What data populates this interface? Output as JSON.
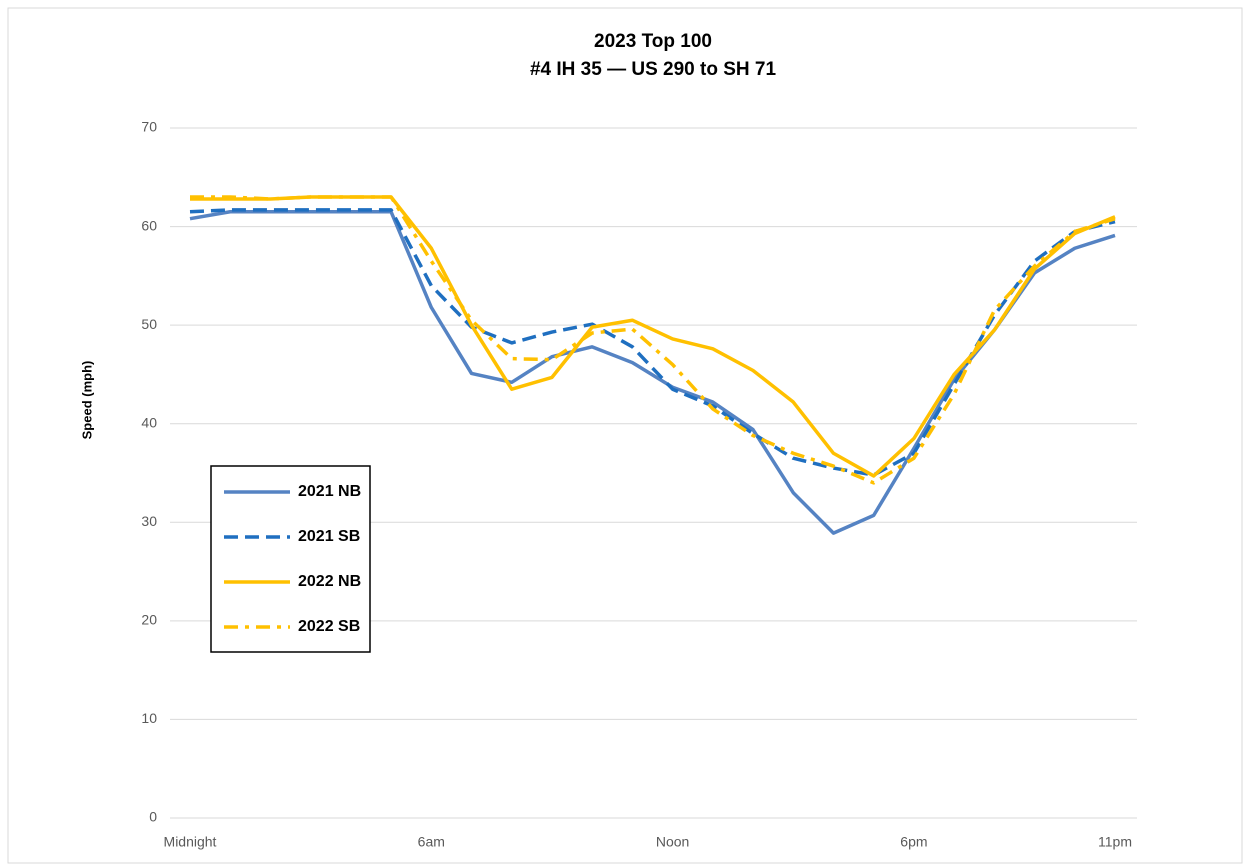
{
  "chart_data": {
    "type": "line",
    "title": "2023 Top 100",
    "subtitle": "#4 IH 35 —  US 290 to SH 71",
    "y_label": "Speed (mph)",
    "categories": [
      "Midnight",
      null,
      null,
      null,
      null,
      null,
      "6am",
      null,
      null,
      null,
      null,
      null,
      "Noon",
      null,
      null,
      null,
      null,
      null,
      "6pm",
      null,
      null,
      null,
      null,
      "11pm"
    ],
    "series": [
      {
        "name": "2021 NB",
        "color": "#5583c3",
        "dash": "solid",
        "values": [
          60.8,
          61.5,
          61.5,
          61.5,
          61.5,
          61.5,
          51.8,
          45.1,
          44.2,
          46.8,
          47.8,
          46.2,
          43.7,
          42.2,
          39.4,
          33.0,
          28.9,
          30.7,
          37.5,
          44.5,
          49.5,
          55.3,
          57.8,
          59.1
        ]
      },
      {
        "name": "2021 SB",
        "color": "#1f6fc0",
        "dash": "dash",
        "values": [
          61.5,
          61.7,
          61.7,
          61.7,
          61.7,
          61.7,
          54.0,
          49.8,
          48.2,
          49.3,
          50.1,
          47.8,
          43.5,
          41.8,
          39.0,
          36.5,
          35.5,
          34.8,
          37.0,
          44.0,
          51.0,
          56.5,
          59.5,
          60.5
        ]
      },
      {
        "name": "2022 NB",
        "color": "#ffc000",
        "dash": "solid",
        "values": [
          62.8,
          62.8,
          62.8,
          63.0,
          63.0,
          63.0,
          57.8,
          50.0,
          43.5,
          44.7,
          49.8,
          50.5,
          48.6,
          47.6,
          45.4,
          42.2,
          37.0,
          34.7,
          38.5,
          45.0,
          49.5,
          55.7,
          59.3,
          61.0
        ]
      },
      {
        "name": "2022 SB",
        "color": "#ffc000",
        "dash": "dashdot",
        "values": [
          63.0,
          63.0,
          62.8,
          63.0,
          63.0,
          63.0,
          56.5,
          50.5,
          46.6,
          46.5,
          49.2,
          49.6,
          46.0,
          41.5,
          38.8,
          37.0,
          35.7,
          34.0,
          36.5,
          43.0,
          51.5,
          56.0,
          59.5,
          60.8
        ]
      }
    ],
    "ylim": [
      0,
      70
    ],
    "yticks": [
      0,
      10,
      20,
      30,
      40,
      50,
      60,
      70
    ],
    "grid": true
  }
}
